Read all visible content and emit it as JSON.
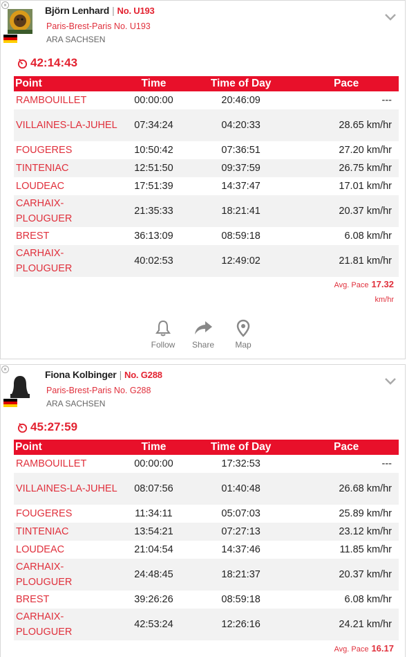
{
  "cards": [
    {
      "name": "Björn Lenhard",
      "bib": "No. U193",
      "event": "Paris-Brest-Paris No. U193",
      "club": "ARA SACHSEN",
      "total_time": "42:14:43",
      "headers": [
        "Point",
        "Time",
        "Time of Day",
        "Pace"
      ],
      "rows": [
        {
          "point": "RAMBOUILLET",
          "time": "00:00:00",
          "tod": "20:46:09",
          "pace": "---"
        },
        {
          "point": "VILLAINES-LA-JUHEL",
          "time": "07:34:24",
          "tod": "04:20:33",
          "pace": "28.65 km/hr"
        },
        {
          "point": "FOUGERES",
          "time": "10:50:42",
          "tod": "07:36:51",
          "pace": "27.20 km/hr"
        },
        {
          "point": "TINTENIAC",
          "time": "12:51:50",
          "tod": "09:37:59",
          "pace": "26.75 km/hr"
        },
        {
          "point": "LOUDEAC",
          "time": "17:51:39",
          "tod": "14:37:47",
          "pace": "17.01 km/hr"
        },
        {
          "point": "CARHAIX-PLOUGUER",
          "time": "21:35:33",
          "tod": "18:21:41",
          "pace": "20.37 km/hr"
        },
        {
          "point": "BREST",
          "time": "36:13:09",
          "tod": "08:59:18",
          "pace": "6.08 km/hr"
        },
        {
          "point": "CARHAIX-PLOUGUER",
          "time": "40:02:53",
          "tod": "12:49:02",
          "pace": "21.81 km/hr"
        }
      ],
      "avg_label": "Avg. Pace",
      "avg_value": "17.32",
      "avg_unit": "km/hr",
      "actions": {
        "follow": "Follow",
        "share": "Share",
        "map": "Map"
      }
    },
    {
      "name": "Fiona Kolbinger",
      "bib": "No. G288",
      "event": "Paris-Brest-Paris No. G288",
      "club": "ARA SACHSEN",
      "total_time": "45:27:59",
      "headers": [
        "Point",
        "Time",
        "Time of Day",
        "Pace"
      ],
      "rows": [
        {
          "point": "RAMBOUILLET",
          "time": "00:00:00",
          "tod": "17:32:53",
          "pace": "---"
        },
        {
          "point": "VILLAINES-LA-JUHEL",
          "time": "08:07:56",
          "tod": "01:40:48",
          "pace": "26.68 km/hr"
        },
        {
          "point": "FOUGERES",
          "time": "11:34:11",
          "tod": "05:07:03",
          "pace": "25.89 km/hr"
        },
        {
          "point": "TINTENIAC",
          "time": "13:54:21",
          "tod": "07:27:13",
          "pace": "23.12 km/hr"
        },
        {
          "point": "LOUDEAC",
          "time": "21:04:54",
          "tod": "14:37:46",
          "pace": "11.85 km/hr"
        },
        {
          "point": "CARHAIX-PLOUGUER",
          "time": "24:48:45",
          "tod": "18:21:37",
          "pace": "20.37 km/hr"
        },
        {
          "point": "BREST",
          "time": "39:26:26",
          "tod": "08:59:18",
          "pace": "6.08 km/hr"
        },
        {
          "point": "CARHAIX-PLOUGUER",
          "time": "42:53:24",
          "tod": "12:26:16",
          "pace": "24.21 km/hr"
        }
      ],
      "avg_label": "Avg. Pace",
      "avg_value": "16.17"
    }
  ],
  "icons": {
    "close": "close-icon",
    "chevron": "chevron-down-icon",
    "stopwatch": "stopwatch-icon",
    "follow": "bell-icon",
    "share": "share-arrow-icon",
    "map": "map-pin-icon"
  },
  "colors": {
    "accent": "#e8102a",
    "link": "#e0303c",
    "row_alt": "#f2f2f2"
  }
}
